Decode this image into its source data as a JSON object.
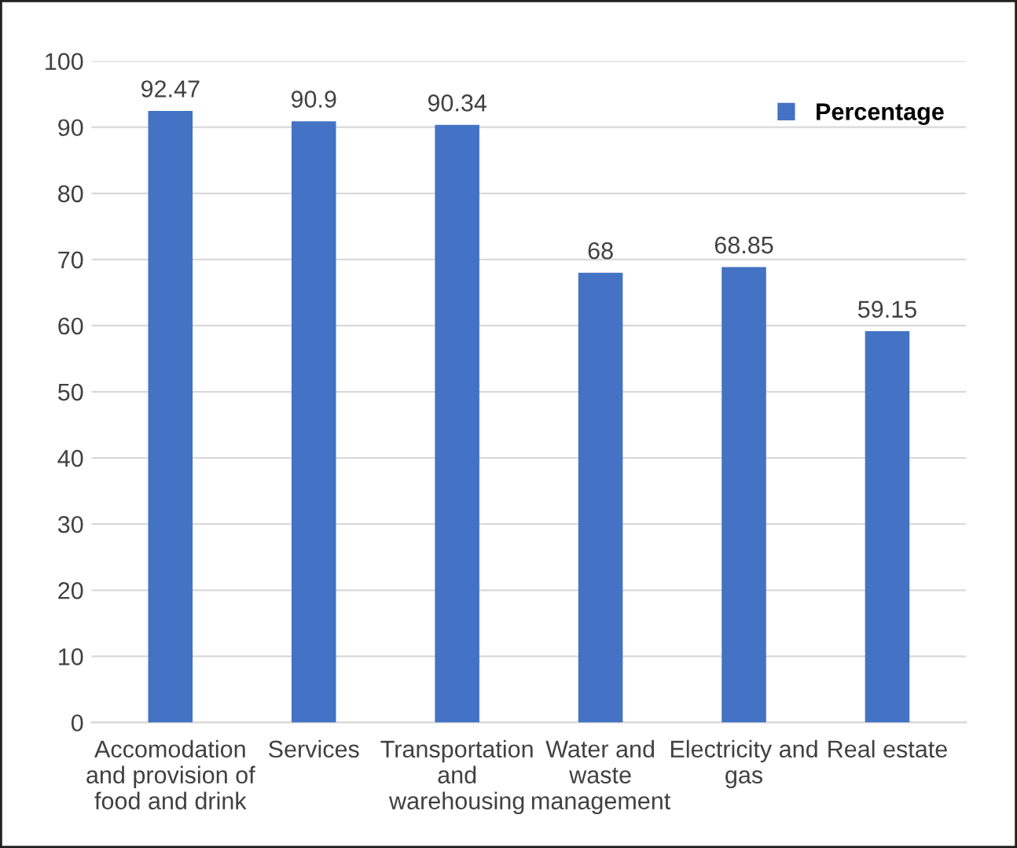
{
  "chart_data": {
    "type": "bar",
    "categories": [
      "Accomodation\nand provision of\nfood and drink",
      "Services",
      "Transportation\nand\nwarehousing",
      "Water and\nwaste\nmanagement",
      "Electricity and\ngas",
      "Real estate"
    ],
    "series": [
      {
        "name": "Percentage",
        "color": "#4472c4",
        "values": [
          92.47,
          90.9,
          90.34,
          68,
          68.85,
          59.15
        ]
      }
    ],
    "ylim": [
      0,
      100
    ],
    "yticks": [
      0,
      10,
      20,
      30,
      40,
      50,
      60,
      70,
      80,
      90,
      100
    ],
    "grid": "y",
    "legend": "top right",
    "data_labels": true
  }
}
